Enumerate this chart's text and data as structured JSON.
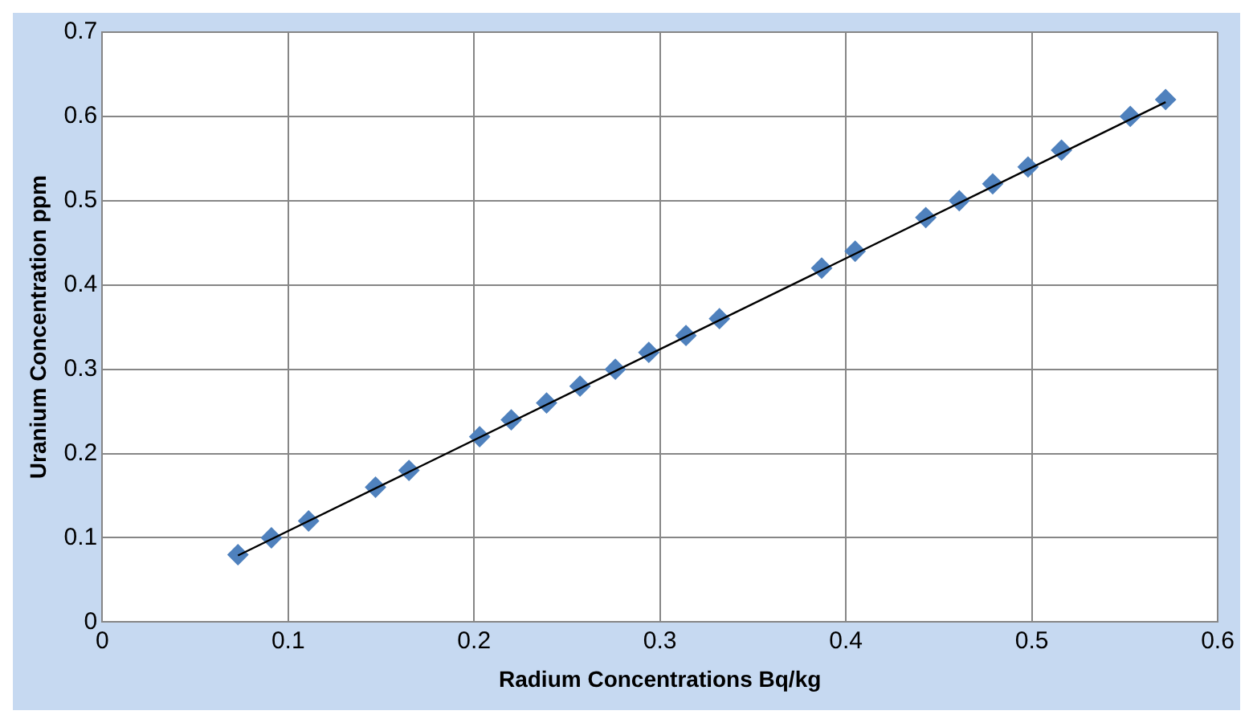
{
  "chart_data": {
    "type": "scatter",
    "xlabel": "Radium Concentrations Bq/kg",
    "ylabel": "Uranium Concentration ppm",
    "xlim": [
      0,
      0.6
    ],
    "xticks": [
      0,
      0.1,
      0.2,
      0.3,
      0.4,
      0.5,
      0.6
    ],
    "ylim": [
      0,
      0.7
    ],
    "yticks": [
      0,
      0.1,
      0.2,
      0.3,
      0.4,
      0.5,
      0.6,
      0.7
    ],
    "grid": true,
    "legend": false,
    "series": [
      {
        "type": "scatter",
        "marker": "diamond",
        "color": "#4f81bd",
        "x": [
          0.073,
          0.091,
          0.111,
          0.147,
          0.165,
          0.203,
          0.22,
          0.239,
          0.257,
          0.276,
          0.294,
          0.314,
          0.332,
          0.387,
          0.405,
          0.443,
          0.461,
          0.479,
          0.498,
          0.516,
          0.553,
          0.572
        ],
        "values": [
          0.08,
          0.1,
          0.12,
          0.16,
          0.18,
          0.22,
          0.24,
          0.26,
          0.28,
          0.3,
          0.32,
          0.34,
          0.36,
          0.42,
          0.44,
          0.48,
          0.5,
          0.52,
          0.54,
          0.56,
          0.6,
          0.62
        ]
      },
      {
        "type": "line",
        "marker": "none",
        "color": "#000000",
        "x": [
          0.073,
          0.572
        ],
        "values": [
          0.079,
          0.617
        ]
      }
    ]
  }
}
